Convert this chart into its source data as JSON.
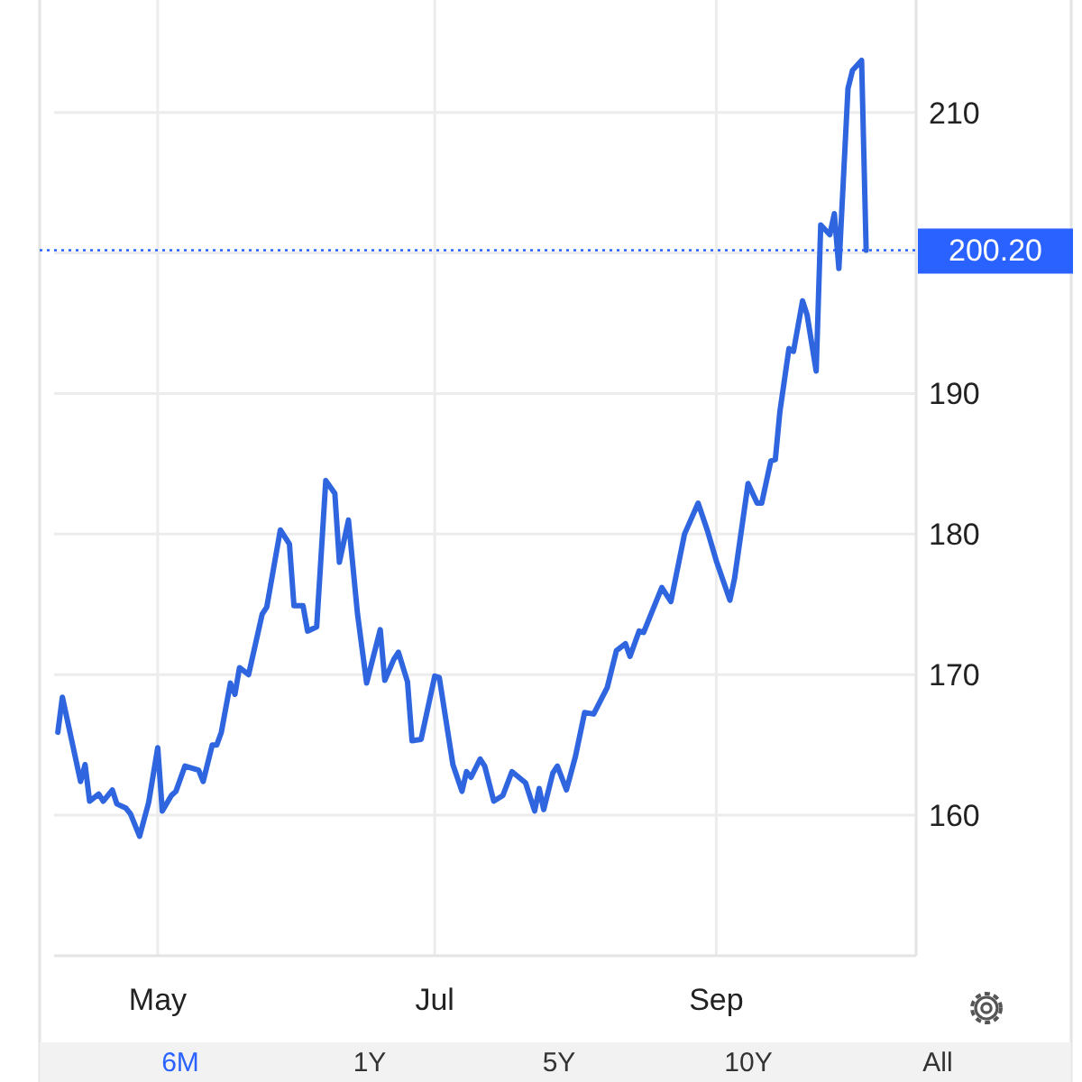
{
  "chart_data": {
    "type": "line",
    "x": [
      "--04-09",
      "--04-10",
      "--04-14",
      "--04-15",
      "--04-16",
      "--04-18",
      "--04-19",
      "--04-21",
      "--04-22",
      "--04-24",
      "--04-25",
      "--04-27",
      "--04-29",
      "--05-01",
      "--05-02",
      "--05-04",
      "--05-05",
      "--05-07",
      "--05-10",
      "--05-11",
      "--05-13",
      "--05-14",
      "--05-15",
      "--05-17",
      "--05-18",
      "--05-19",
      "--05-21",
      "--05-24",
      "--05-25",
      "--05-28",
      "--05-30",
      "--05-31",
      "--06-02",
      "--06-03",
      "--06-05",
      "--06-07",
      "--06-09",
      "--06-10",
      "--06-12",
      "--06-14",
      "--06-16",
      "--06-19",
      "--06-20",
      "--06-22",
      "--06-23",
      "--06-25",
      "--06-26",
      "--06-28",
      "--07-01",
      "--07-02",
      "--07-05",
      "--07-07",
      "--07-08",
      "--07-09",
      "--07-11",
      "--07-12",
      "--07-14",
      "--07-16",
      "--07-18",
      "--07-21",
      "--07-23",
      "--07-24",
      "--07-25",
      "--07-27",
      "--07-28",
      "--07-30",
      "--08-01",
      "--08-03",
      "--08-05",
      "--08-08",
      "--08-10",
      "--08-12",
      "--08-13",
      "--08-15",
      "--08-16",
      "--08-20",
      "--08-22",
      "--08-25",
      "--08-28",
      "--08-30",
      "--09-01",
      "--09-04",
      "--09-05",
      "--09-08",
      "--09-10",
      "--09-11",
      "--09-13",
      "--09-14",
      "--09-15",
      "--09-17",
      "--09-18",
      "--09-20",
      "--09-21",
      "--09-23",
      "--09-24",
      "--09-26",
      "--09-27",
      "--09-28",
      "--09-30",
      "--10-01",
      "--10-03",
      "--10-04"
    ],
    "series": [
      {
        "color": "#2f66e0",
        "values": [
          165.9,
          168.4,
          162.4,
          163.6,
          161.0,
          161.5,
          161.0,
          161.8,
          160.8,
          160.5,
          160.1,
          158.5,
          160.9,
          164.8,
          160.3,
          161.4,
          161.7,
          163.5,
          163.2,
          162.4,
          165.0,
          165.0,
          165.9,
          169.4,
          168.6,
          170.5,
          170.0,
          174.3,
          174.8,
          180.3,
          179.3,
          174.9,
          174.9,
          173.1,
          173.4,
          183.8,
          182.9,
          178.0,
          181.0,
          174.3,
          169.4,
          173.2,
          169.6,
          171.1,
          171.6,
          169.5,
          165.3,
          165.4,
          169.9,
          169.8,
          163.6,
          161.7,
          163.1,
          162.7,
          164.0,
          163.5,
          161.0,
          161.4,
          163.1,
          162.3,
          160.3,
          161.9,
          160.4,
          163.0,
          163.5,
          161.8,
          164.2,
          167.3,
          167.2,
          169.1,
          171.7,
          172.2,
          171.3,
          173.1,
          173.0,
          176.2,
          175.2,
          180.0,
          182.2,
          180.3,
          178.1,
          175.3,
          176.8,
          183.6,
          182.2,
          182.2,
          185.2,
          185.3,
          188.7,
          193.2,
          193.0,
          196.6,
          195.6,
          191.6,
          202.0,
          201.3,
          202.8,
          198.9,
          211.7,
          213.0,
          213.7,
          200.2
        ]
      }
    ],
    "xlim": [
      "--04-05",
      "--10-15"
    ],
    "xticks": [
      {
        "value": "--05-01",
        "label": "May"
      },
      {
        "value": "--07-01",
        "label": "Jul"
      },
      {
        "value": "--09-01",
        "label": "Sep"
      }
    ],
    "ylim": [
      150,
      218
    ],
    "yticks": [
      160,
      170,
      180,
      190,
      {
        "value": 200,
        "label": null
      },
      210
    ],
    "grid": true,
    "ref_lines": [
      {
        "axis": "y",
        "value": 200.2,
        "label": "200.20",
        "color": "#2962ff",
        "line_style": "dotted"
      }
    ],
    "annotations": [
      "6M",
      "1Y",
      "5Y",
      "10Y",
      "All"
    ]
  }
}
